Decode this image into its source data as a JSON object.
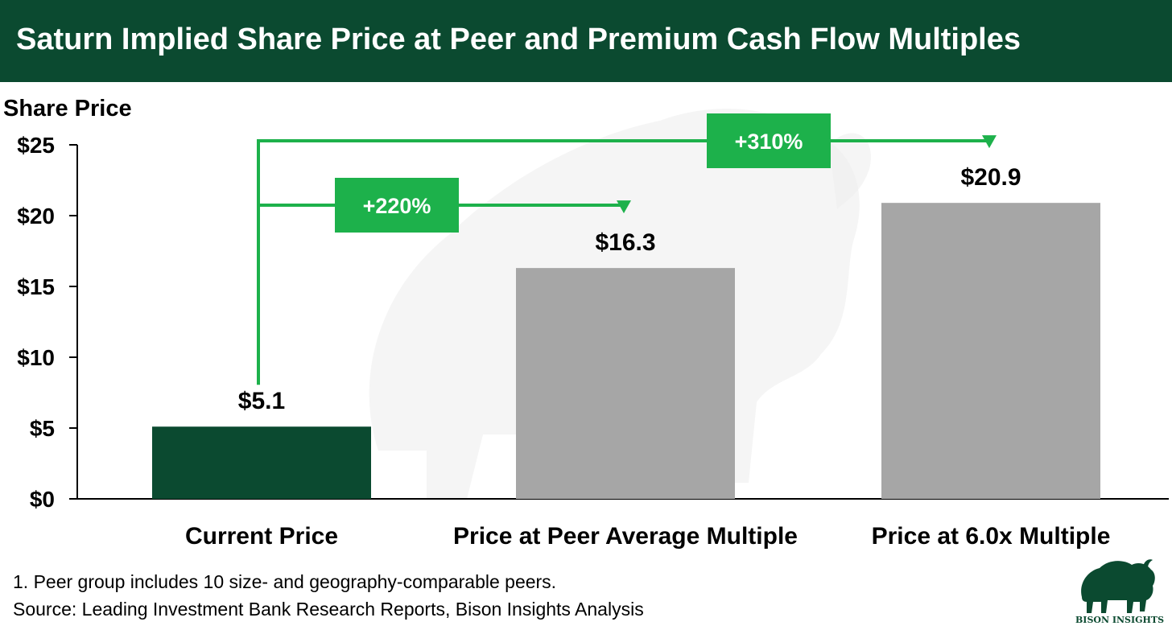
{
  "colors": {
    "title_bg": "#0b4a30",
    "title_text": "#ffffff",
    "current_bar": "#0b4a30",
    "other_bars": "#a6a6a6",
    "arrow": "#1db14b",
    "watermark": "#ececec"
  },
  "chart_data": {
    "type": "bar",
    "title": "Saturn Implied Share Price at Peer and Premium Cash Flow Multiples",
    "ylabel": "Share Price",
    "xlabel": "",
    "categories": [
      "Current Price",
      "Price at Peer Average Multiple",
      "Price at 6.0x Multiple"
    ],
    "values": [
      5.1,
      16.3,
      20.9
    ],
    "value_labels": [
      "$5.1",
      "$16.3",
      "$20.9"
    ],
    "bar_colors": [
      "#0b4a30",
      "#a6a6a6",
      "#a6a6a6"
    ],
    "ylim": [
      0,
      25
    ],
    "yticks": [
      0,
      5,
      10,
      15,
      20,
      25
    ],
    "ytick_labels": [
      "$0",
      "$5",
      "$10",
      "$15",
      "$20",
      "$25"
    ],
    "grid": false,
    "legend": "none",
    "annotations": [
      {
        "text": "+220%",
        "from_category": 0,
        "to_category": 1,
        "arrow_level": 20
      },
      {
        "text": "+310%",
        "from_category": 0,
        "to_category": 2,
        "arrow_level": 25
      }
    ]
  },
  "footnotes": [
    "1. Peer group includes 10 size- and geography-comparable peers.",
    "Source: Leading Investment Bank Research Reports, Bison Insights Analysis"
  ],
  "logo": {
    "icon": "bison-icon",
    "text": "BISON INSIGHTS"
  }
}
